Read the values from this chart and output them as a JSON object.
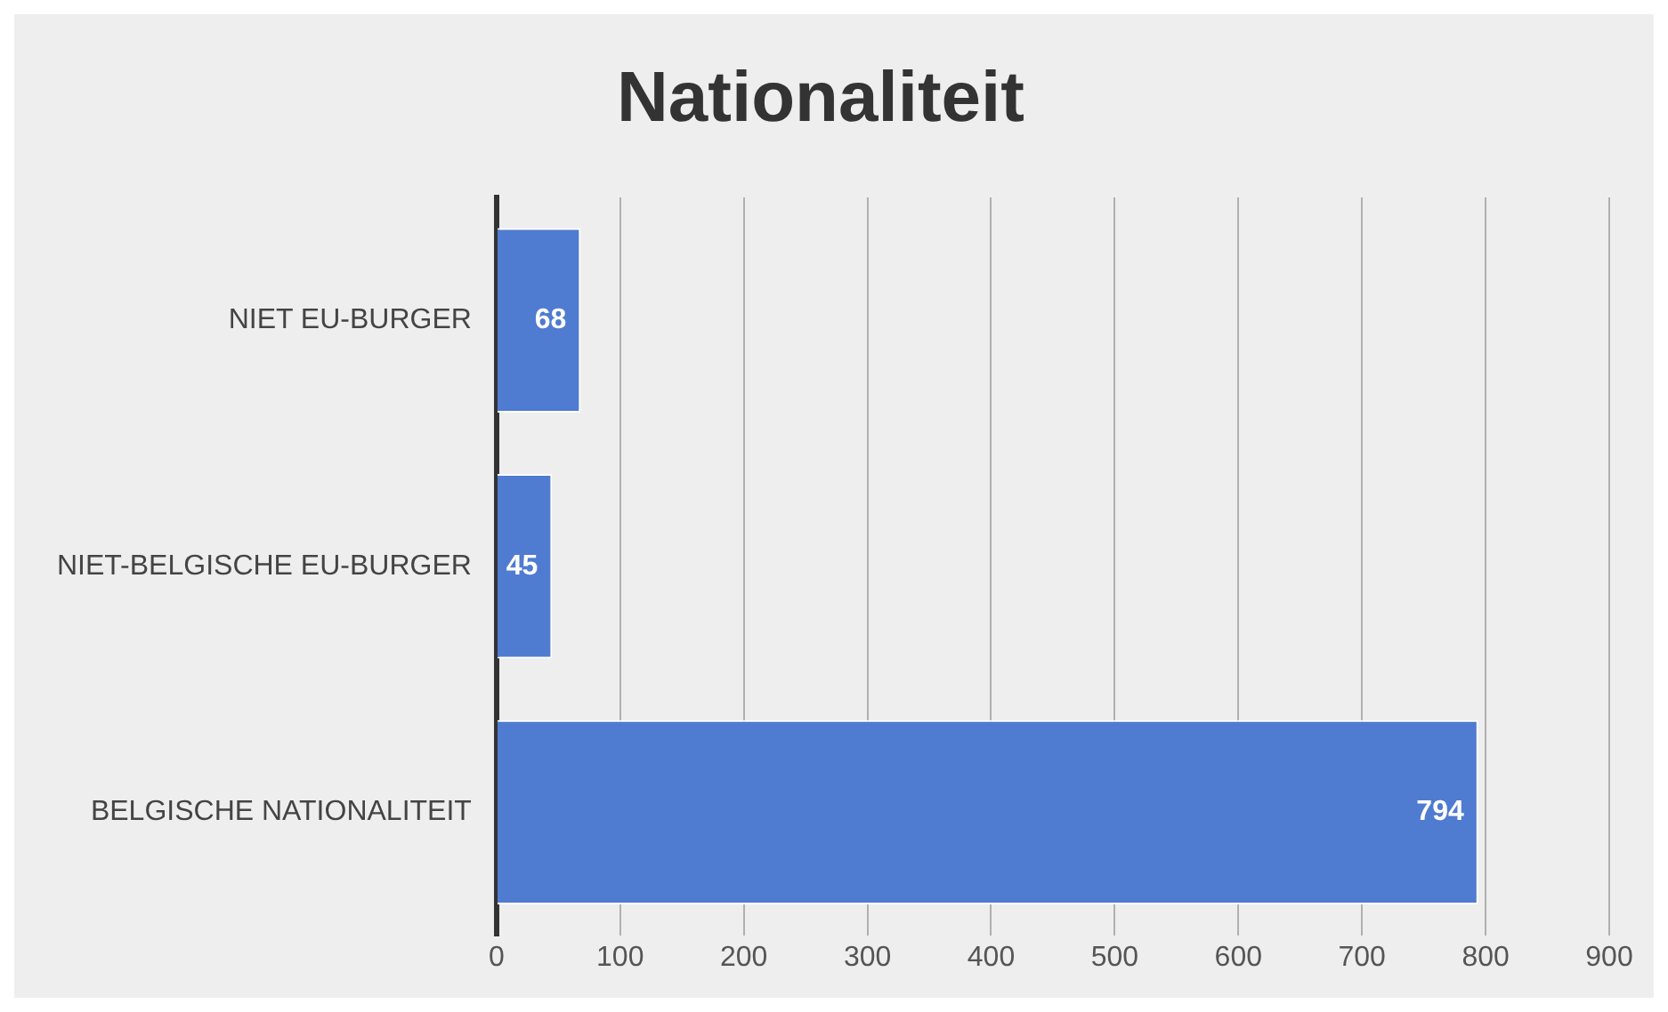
{
  "chart_data": {
    "type": "bar",
    "orientation": "horizontal",
    "title": "Nationaliteit",
    "categories": [
      "NIET EU-BURGER",
      "NIET-BELGISCHE EU-BURGER",
      "BELGISCHE NATIONALITEIT"
    ],
    "values": [
      68,
      45,
      794
    ],
    "color": "#4f7bd0",
    "xlim": [
      0,
      900
    ],
    "xticks": [
      0,
      100,
      200,
      300,
      400,
      500,
      600,
      700,
      800,
      900
    ],
    "grid": "x",
    "data_labels": true
  }
}
